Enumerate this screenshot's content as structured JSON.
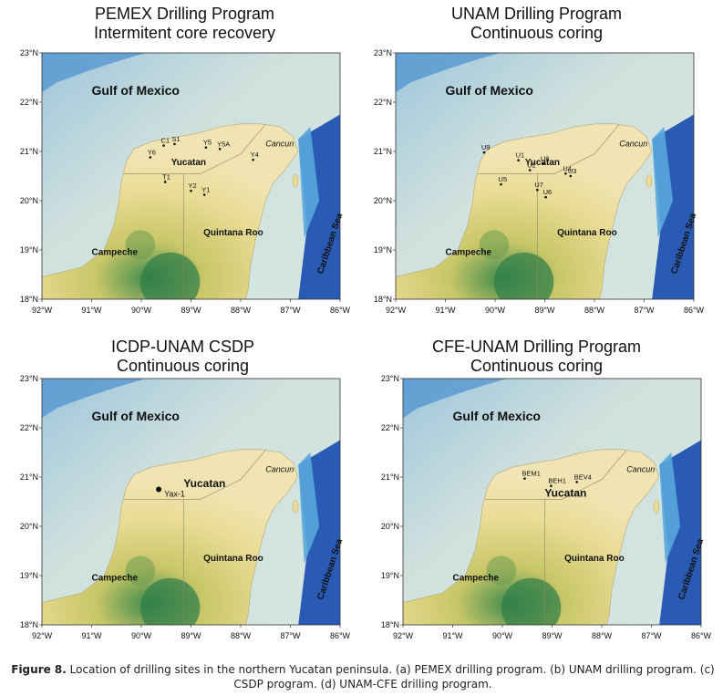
{
  "panels": [
    {
      "id": "a",
      "title_line1": "PEMEX Drilling Program",
      "title_line2": "Intermitent core recovery",
      "regions": {
        "gulf": "Gulf of Mexico",
        "yucatan": "Yucatan",
        "quintana_roo": "Quintana Roo",
        "campeche": "Campeche",
        "cancun": "Cancun",
        "caribbean": "Caribbean Sea"
      },
      "sites": [
        {
          "label": "C1",
          "lon": -89.55,
          "lat": 21.12
        },
        {
          "label": "S1",
          "lon": -89.33,
          "lat": 21.15
        },
        {
          "label": "Y5",
          "lon": -88.7,
          "lat": 21.08
        },
        {
          "label": "Y5A",
          "lon": -88.42,
          "lat": 21.05
        },
        {
          "label": "Y6",
          "lon": -89.82,
          "lat": 20.88
        },
        {
          "label": "Y4",
          "lon": -87.75,
          "lat": 20.83
        },
        {
          "label": "T1",
          "lon": -89.52,
          "lat": 20.38
        },
        {
          "label": "Y2",
          "lon": -89.0,
          "lat": 20.2
        },
        {
          "label": "Y1",
          "lon": -88.73,
          "lat": 20.12
        }
      ]
    },
    {
      "id": "b",
      "title_line1": "UNAM Drilling Program",
      "title_line2": "Continuous coring",
      "regions": {
        "gulf": "Gulf of Mexico",
        "yucatan": "Yucatan",
        "quintana_roo": "Quintana Roo",
        "campeche": "Campeche",
        "cancun": "Cancun",
        "caribbean": "Caribbean Sea"
      },
      "sites": [
        {
          "label": "U9",
          "lon": -90.22,
          "lat": 20.98
        },
        {
          "label": "U1",
          "lon": -89.53,
          "lat": 20.82
        },
        {
          "label": "U8",
          "lon": -89.03,
          "lat": 20.75
        },
        {
          "label": "U2",
          "lon": -89.3,
          "lat": 20.62
        },
        {
          "label": "U4",
          "lon": -88.58,
          "lat": 20.55
        },
        {
          "label": "U3",
          "lon": -88.48,
          "lat": 20.5
        },
        {
          "label": "U5",
          "lon": -89.88,
          "lat": 20.33
        },
        {
          "label": "U7",
          "lon": -89.15,
          "lat": 20.22
        },
        {
          "label": "U6",
          "lon": -88.98,
          "lat": 20.07
        }
      ]
    },
    {
      "id": "c",
      "title_line1": "ICDP-UNAM CSDP",
      "title_line2": "Continuous coring",
      "regions": {
        "gulf": "Gulf of Mexico",
        "yucatan": "Yucatan",
        "quintana_roo": "Quintana Roo",
        "campeche": "Campeche",
        "cancun": "Cancun",
        "caribbean": "Caribbean Sea"
      },
      "sites": [
        {
          "label": "Yax-1",
          "lon": -89.65,
          "lat": 20.75
        }
      ]
    },
    {
      "id": "d",
      "title_line1": "CFE-UNAM Drilling Program",
      "title_line2": "Continuous coring",
      "regions": {
        "gulf": "Gulf of Mexico",
        "yucatan": "Yucatan",
        "quintana_roo": "Quintana Roo",
        "campeche": "Campeche",
        "cancun": "Cancun",
        "caribbean": "Caribbean Sea"
      },
      "sites": [
        {
          "label": "BEM1",
          "lon": -89.55,
          "lat": 20.97
        },
        {
          "label": "BEH1",
          "lon": -89.02,
          "lat": 20.82
        },
        {
          "label": "BEV4",
          "lon": -88.5,
          "lat": 20.9
        }
      ]
    }
  ],
  "lon_ticks": [
    "92°W",
    "91°W",
    "90°W",
    "89°W",
    "88°W",
    "87°W",
    "86°W"
  ],
  "lat_ticks": [
    "23°N",
    "22°N",
    "21°N",
    "20°N",
    "19°N",
    "18°N"
  ],
  "caption": {
    "label": "Figure 8.",
    "text": "Location of drilling sites in the northern Yucatan peninsula. (a) PEMEX drilling program. (b) UNAM drilling program. (c) CSDP program. (d) UNAM-CFE drilling program."
  },
  "colors": {
    "gulf_shallow": "#d6e6e2",
    "deep_sea": "#2a5bb4",
    "land_light": "#f1e4b3",
    "land_mid": "#c8c668",
    "land_dark": "#3e8a4c"
  }
}
